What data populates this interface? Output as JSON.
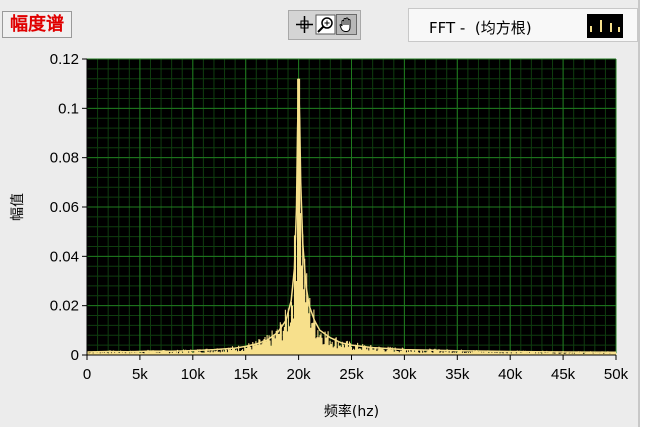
{
  "graph": {
    "label": "幅度谱",
    "tools": [
      "cursor-tool",
      "zoom-tool",
      "pan-tool"
    ]
  },
  "legend": {
    "plot_name": "FFT -  (均方根)"
  },
  "chart_data": {
    "type": "area",
    "title": "",
    "xlabel": "频率(hz)",
    "ylabel": "幅值",
    "xlim": [
      0,
      50000
    ],
    "ylim": [
      0,
      0.12
    ],
    "x_ticks": [
      0,
      5000,
      10000,
      15000,
      20000,
      25000,
      30000,
      35000,
      40000,
      45000,
      50000
    ],
    "x_tick_labels": [
      "0",
      "5k",
      "10k",
      "15k",
      "20k",
      "25k",
      "30k",
      "35k",
      "40k",
      "45k",
      "50k"
    ],
    "y_ticks": [
      0,
      0.02,
      0.04,
      0.06,
      0.08,
      0.1,
      0.12
    ],
    "y_tick_labels": [
      "0",
      "0.02",
      "0.04",
      "0.06",
      "0.08",
      "0.1",
      "0.12"
    ],
    "grid": true,
    "plot_background": "#000000",
    "grid_color": "#1f7a1f",
    "series": [
      {
        "color": "#f7e08c",
        "peak_frequency": 20000,
        "peak_value": 0.112,
        "noise_floor": 0.0012,
        "points": [
          [
            0,
            0.0012
          ],
          [
            2000,
            0.0014
          ],
          [
            4000,
            0.0013
          ],
          [
            6000,
            0.0016
          ],
          [
            8000,
            0.0015
          ],
          [
            10000,
            0.0018
          ],
          [
            12000,
            0.0022
          ],
          [
            14000,
            0.0028
          ],
          [
            15000,
            0.0035
          ],
          [
            16000,
            0.0045
          ],
          [
            17000,
            0.006
          ],
          [
            18000,
            0.009
          ],
          [
            18800,
            0.014
          ],
          [
            19300,
            0.022
          ],
          [
            19600,
            0.035
          ],
          [
            19800,
            0.06
          ],
          [
            19900,
            0.09
          ],
          [
            20000,
            0.112
          ],
          [
            20100,
            0.095
          ],
          [
            20200,
            0.07
          ],
          [
            20400,
            0.045
          ],
          [
            20700,
            0.028
          ],
          [
            21000,
            0.02
          ],
          [
            21500,
            0.014
          ],
          [
            22000,
            0.01
          ],
          [
            23000,
            0.007
          ],
          [
            24000,
            0.005
          ],
          [
            25000,
            0.004
          ],
          [
            27000,
            0.003
          ],
          [
            30000,
            0.0022
          ],
          [
            35000,
            0.0017
          ],
          [
            40000,
            0.0014
          ],
          [
            45000,
            0.0012
          ],
          [
            50000,
            0.0011
          ]
        ]
      }
    ]
  },
  "colors": {
    "label_red": "#e00000",
    "trace": "#f7e08c",
    "grid": "#1f7a1f"
  }
}
